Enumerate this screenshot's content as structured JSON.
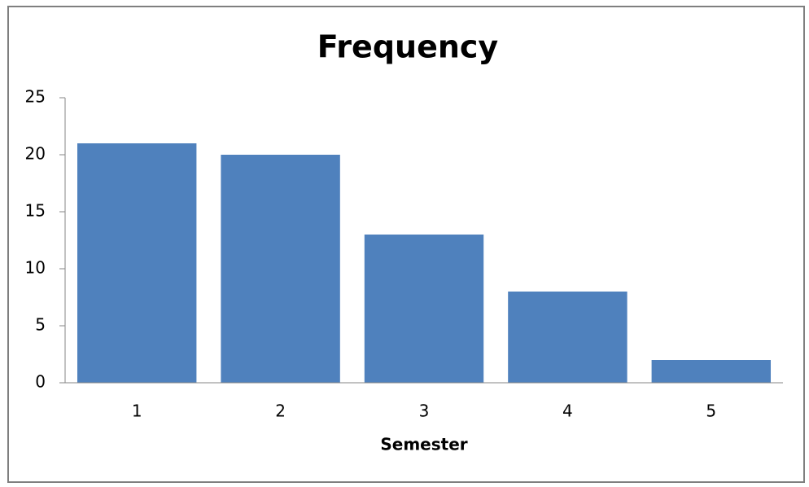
{
  "chart_data": {
    "type": "bar",
    "title": "Frequency",
    "x_label": "Semester",
    "categories": [
      "1",
      "2",
      "3",
      "4",
      "5"
    ],
    "values": [
      21,
      20,
      13,
      8,
      2
    ],
    "color": "#4f81bd",
    "ylim": [
      0,
      25
    ],
    "yticks": [
      0,
      5,
      10,
      15,
      20,
      25
    ],
    "grid": false
  }
}
